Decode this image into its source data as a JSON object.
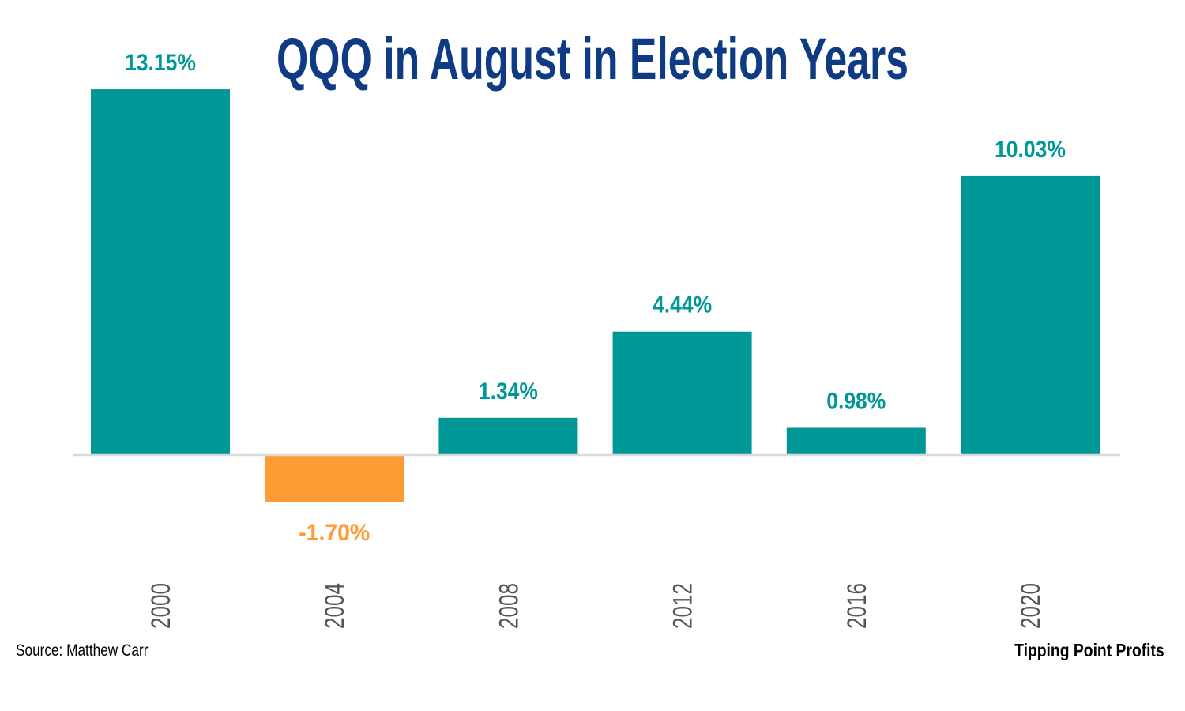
{
  "chart_data": {
    "type": "bar",
    "title": "QQQ in August in Election Years",
    "categories": [
      "2000",
      "2004",
      "2008",
      "2012",
      "2016",
      "2020"
    ],
    "values": [
      13.15,
      -1.7,
      1.34,
      4.44,
      0.98,
      10.03
    ],
    "value_labels": [
      "13.15%",
      "-1.70%",
      "1.34%",
      "4.44%",
      "0.98%",
      "10.03%"
    ],
    "xlabel": "",
    "ylabel": "",
    "ylim": [
      -2.0,
      13.15
    ],
    "grid": false,
    "legend": "none",
    "colors": {
      "positive": "#009896",
      "negative": "#FF9B34",
      "title": "#0E3B84",
      "axis": "#D9D9D9",
      "tick_label": "#555555"
    }
  },
  "footer": {
    "source": "Source: Matthew Carr",
    "brand": "Tipping Point Profits"
  }
}
